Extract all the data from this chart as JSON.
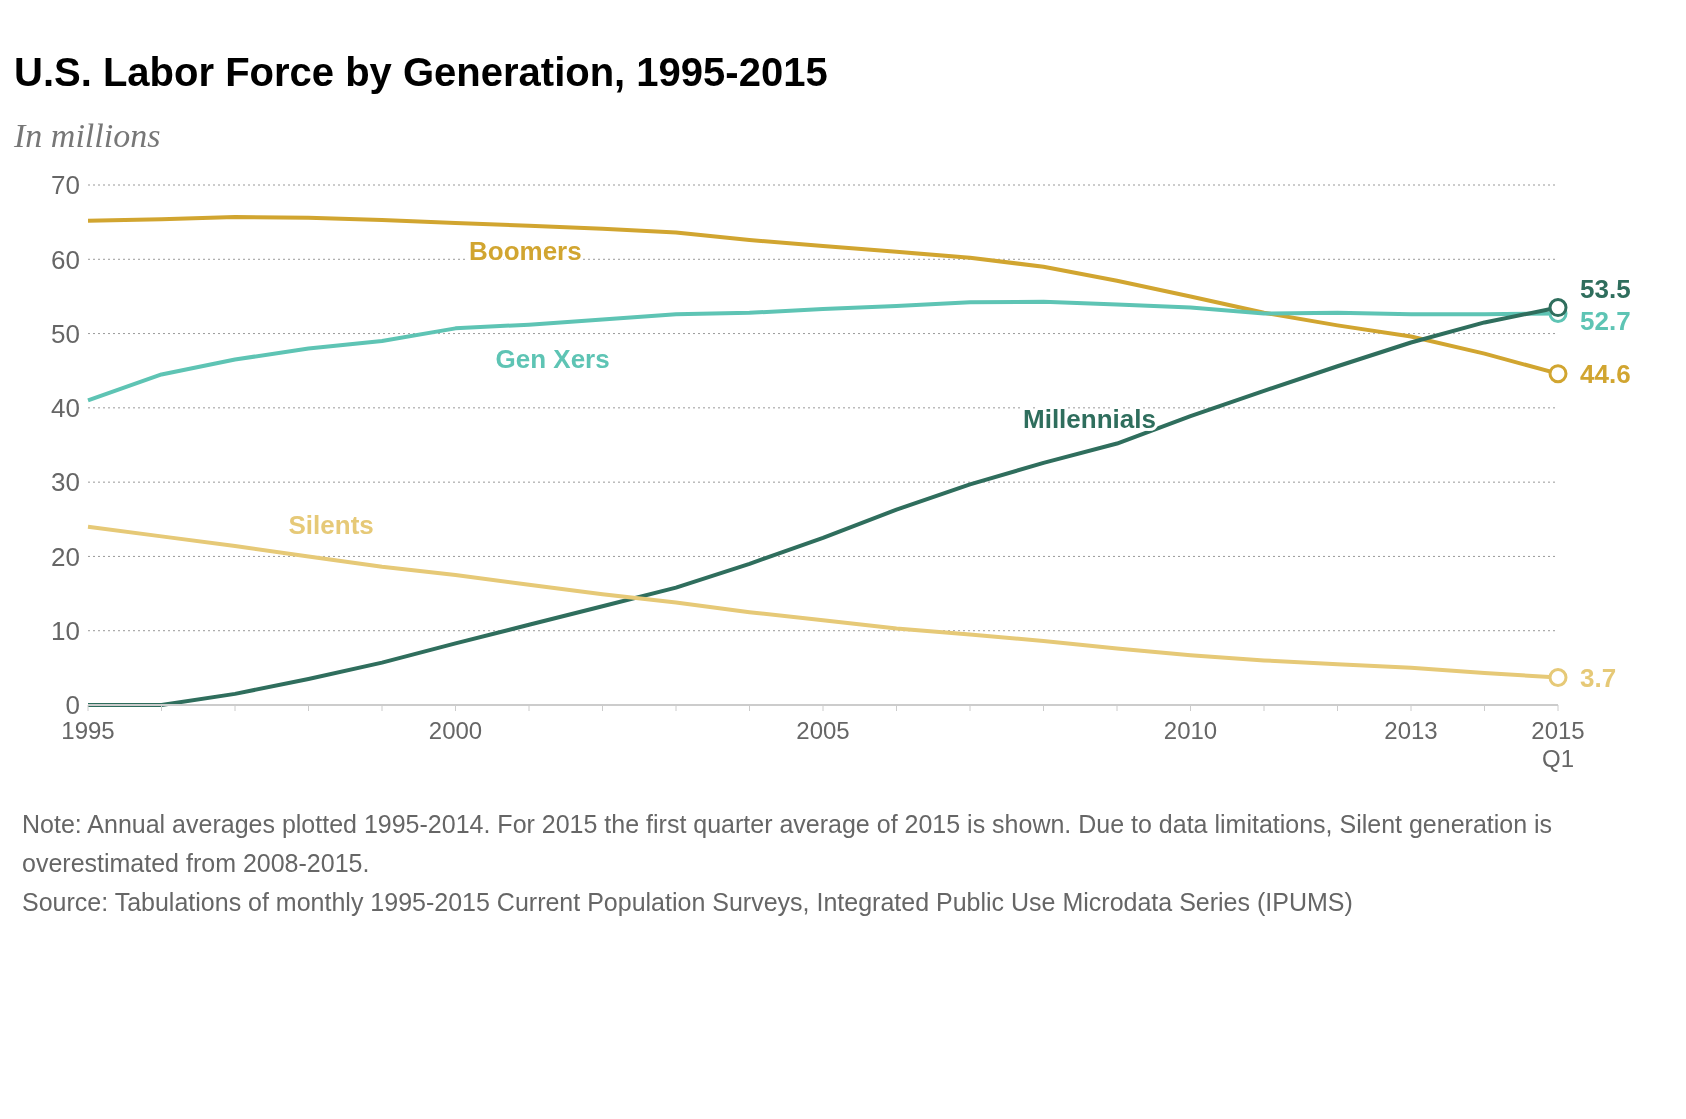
{
  "chart_data": {
    "type": "line",
    "title": "U.S. Labor Force by Generation, 1995-2015",
    "subtitle": "In millions",
    "x": [
      1995,
      1996,
      1997,
      1998,
      1999,
      2000,
      2001,
      2002,
      2003,
      2004,
      2005,
      2006,
      2007,
      2008,
      2009,
      2010,
      2011,
      2012,
      2013,
      2014,
      2015
    ],
    "series": [
      {
        "name": "Boomers",
        "color": "#d1a530",
        "values": [
          65.2,
          65.4,
          65.7,
          65.6,
          65.3,
          64.9,
          64.5,
          64.1,
          63.6,
          62.6,
          61.8,
          61.0,
          60.2,
          59.0,
          57.1,
          55.0,
          52.8,
          51.1,
          49.6,
          47.3,
          44.6
        ],
        "value_labels": [
          null,
          null,
          null,
          null,
          null,
          null,
          null,
          null,
          null,
          null,
          null,
          null,
          null,
          null,
          null,
          null,
          null,
          null,
          null,
          null,
          "44.6"
        ]
      },
      {
        "name": "Gen Xers",
        "color": "#5ec4b4",
        "values": [
          41.0,
          44.5,
          46.5,
          48.0,
          49.0,
          50.7,
          51.2,
          51.9,
          52.6,
          52.8,
          53.3,
          53.7,
          54.2,
          54.3,
          53.9,
          53.5,
          52.7,
          52.8,
          52.6,
          52.6,
          52.7
        ],
        "value_labels": [
          null,
          null,
          null,
          null,
          null,
          null,
          null,
          null,
          null,
          null,
          null,
          null,
          null,
          null,
          null,
          null,
          null,
          null,
          null,
          null,
          "52.7"
        ]
      },
      {
        "name": "Millennials",
        "color": "#2f6e5d",
        "values": [
          0.0,
          0.0,
          1.5,
          3.5,
          5.7,
          8.3,
          10.8,
          13.3,
          15.8,
          19.0,
          22.5,
          26.3,
          29.7,
          32.6,
          35.2,
          38.9,
          42.3,
          45.6,
          48.8,
          51.5,
          53.5
        ],
        "value_labels": [
          null,
          null,
          null,
          null,
          null,
          null,
          null,
          null,
          null,
          null,
          null,
          null,
          null,
          null,
          null,
          null,
          null,
          null,
          null,
          null,
          "53.5"
        ]
      },
      {
        "name": "Silents",
        "color": "#e6c977",
        "values": [
          24.0,
          22.7,
          21.4,
          20.0,
          18.6,
          17.5,
          16.2,
          14.9,
          13.8,
          12.5,
          11.4,
          10.3,
          9.5,
          8.6,
          7.6,
          6.7,
          6.0,
          5.5,
          5.0,
          4.3,
          3.7
        ],
        "value_labels": [
          null,
          null,
          null,
          null,
          null,
          null,
          null,
          null,
          null,
          null,
          null,
          null,
          null,
          null,
          null,
          null,
          null,
          null,
          null,
          null,
          "3.7"
        ]
      }
    ],
    "xlim": [
      1995,
      2015
    ],
    "xticks": [
      1995,
      {
        "value": 1996,
        "label": null
      },
      {
        "value": 1997,
        "label": null
      },
      {
        "value": 1998,
        "label": null
      },
      {
        "value": 1999,
        "label": null
      },
      2000,
      {
        "value": 2001,
        "label": null
      },
      {
        "value": 2002,
        "label": null
      },
      {
        "value": 2003,
        "label": null
      },
      {
        "value": 2004,
        "label": null
      },
      2005,
      {
        "value": 2006,
        "label": null
      },
      {
        "value": 2007,
        "label": null
      },
      {
        "value": 2008,
        "label": null
      },
      {
        "value": 2009,
        "label": null
      },
      2010,
      {
        "value": 2011,
        "label": null
      },
      {
        "value": 2012,
        "label": null
      },
      2013,
      {
        "value": 2014,
        "label": null
      },
      {
        "value": 2015,
        "label": "2015\nQ1"
      }
    ],
    "ylim": [
      0,
      70
    ],
    "yticks": [
      0,
      10,
      20,
      30,
      40,
      50,
      60,
      70
    ],
    "grid": "y",
    "legend": false,
    "line_style": "solid",
    "annotations": [
      "Note: Annual averages plotted 1995-2014. For 2015 the first quarter average of 2015 is shown. Due to data limitations, Silent generation is overestimated from 2008-2015.",
      "Source: Tabulations of monthly 1995-2015 Current Population Surveys, Integrated Public Use Microdata Series (IPUMS)"
    ]
  }
}
